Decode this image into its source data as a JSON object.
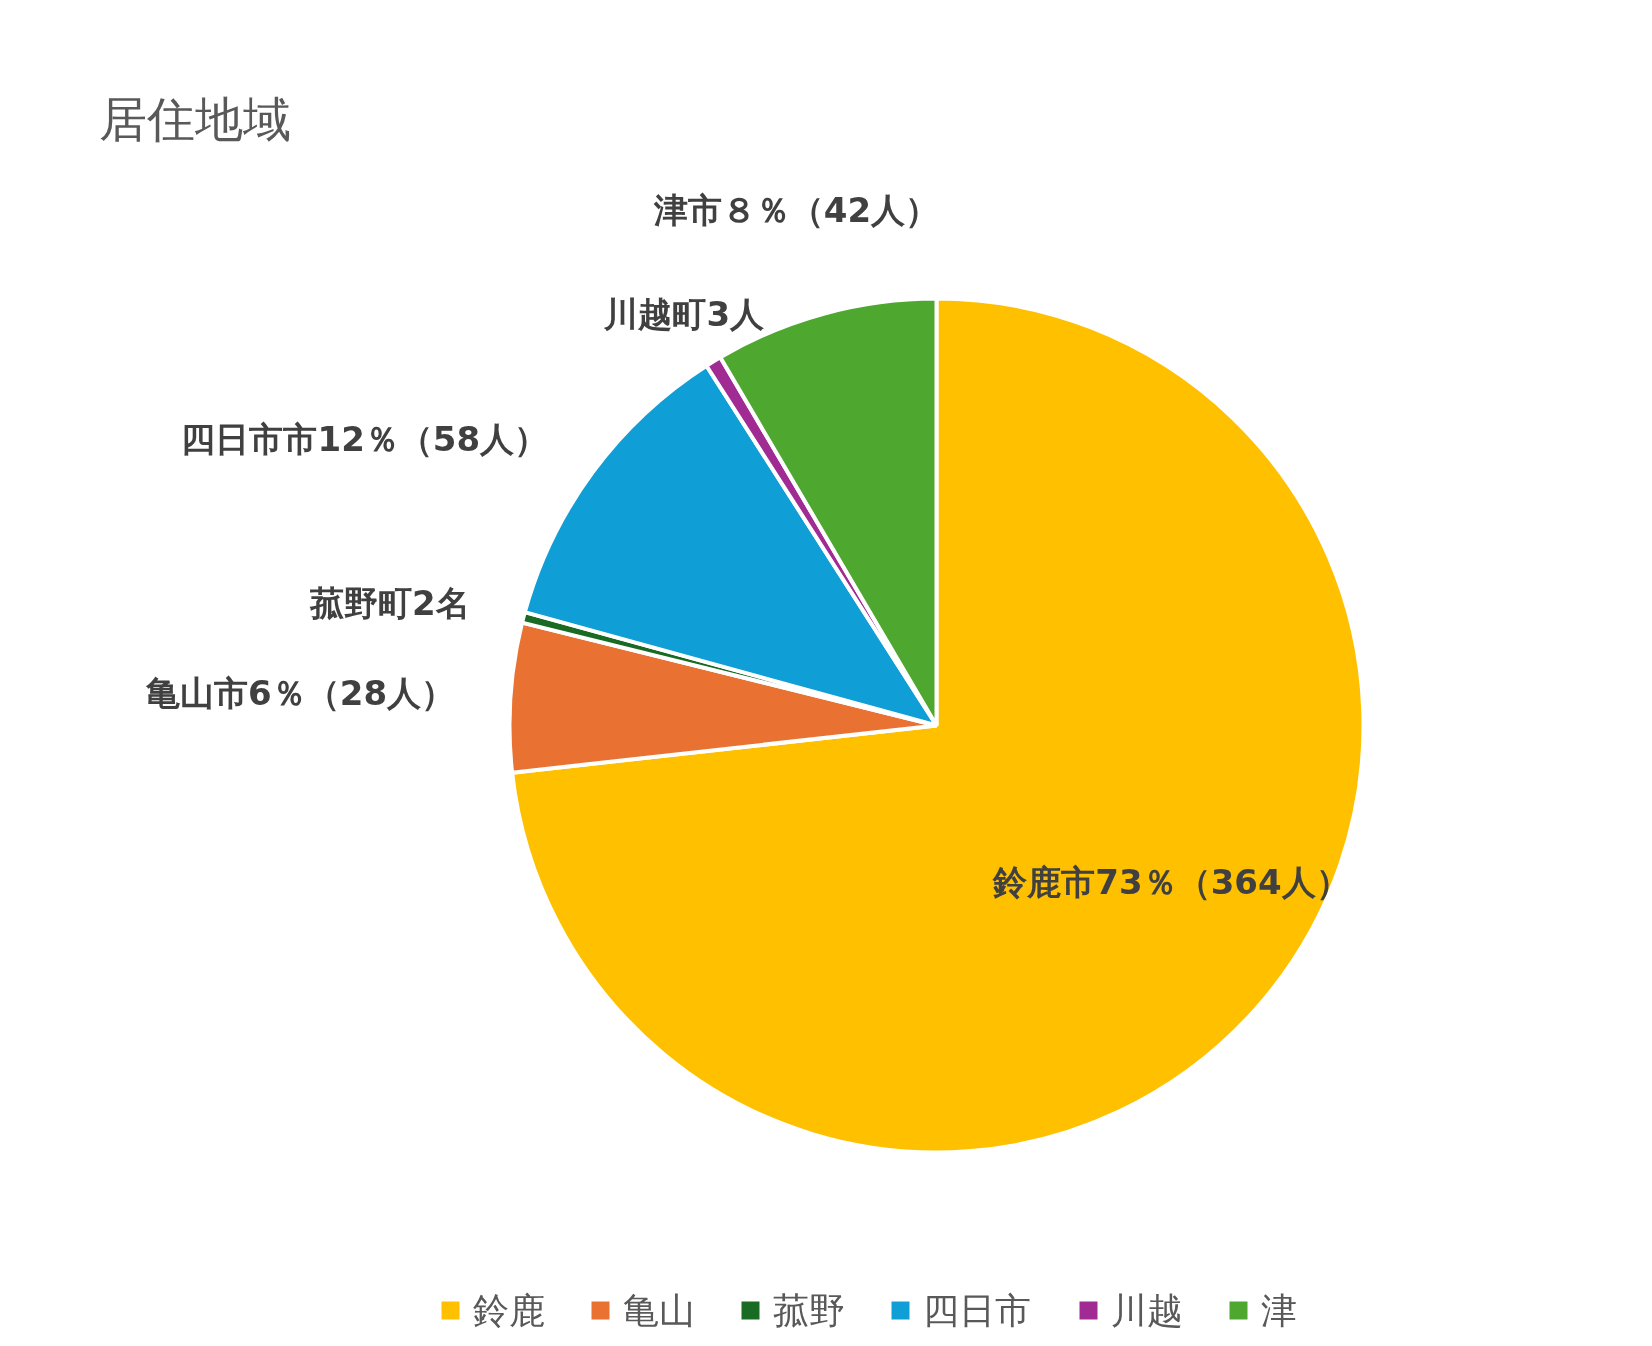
{
  "chart_data": {
    "type": "pie",
    "title": "居住地域",
    "categories": [
      "鈴鹿",
      "亀山",
      "菰野",
      "四日市",
      "川越",
      "津"
    ],
    "values": [
      364,
      28,
      2,
      58,
      3,
      42
    ],
    "colors": [
      "#ffc000",
      "#e97132",
      "#196b24",
      "#0f9ed5",
      "#a02b93",
      "#4ea72e"
    ],
    "value_labels": [
      "鈴鹿市73％（364人）",
      "亀山市6％（28人）",
      "菰野町2名",
      "四日市市12％（58人）",
      "川越町3人",
      "津市８％（42人）"
    ],
    "legend": "bottom"
  }
}
